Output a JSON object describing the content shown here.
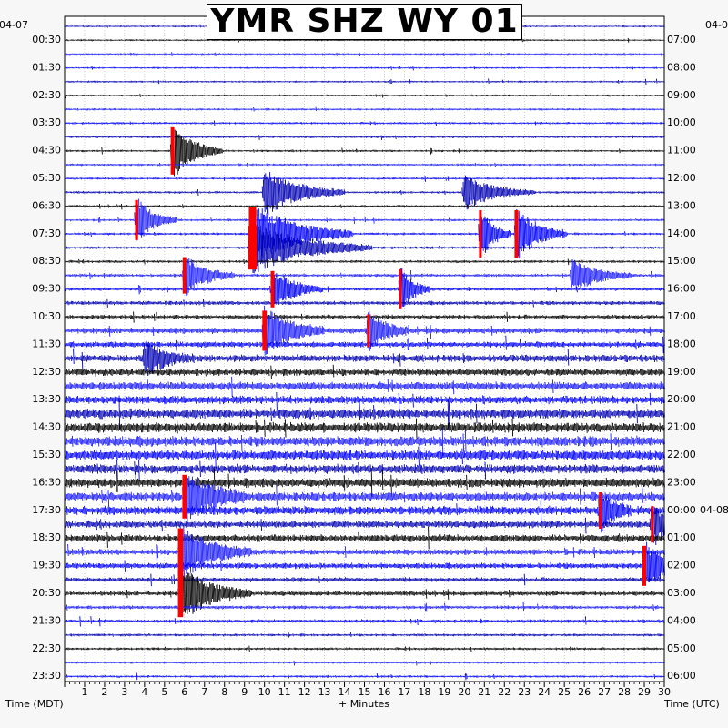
{
  "chart_data": {
    "type": "line",
    "title": "YMR SHZ WY 01",
    "xlabel": "+ Minutes",
    "left_axis_title": "Time (MDT)",
    "right_axis_title": "Time (UTC)",
    "left_date": "04-07",
    "right_date_top": "04-0",
    "right_date_change": "04-08",
    "x_range": [
      0,
      30
    ],
    "x_ticks": [
      "1",
      "2",
      "3",
      "4",
      "5",
      "6",
      "7",
      "8",
      "9",
      "10",
      "11",
      "12",
      "13",
      "14",
      "15",
      "16",
      "17",
      "18",
      "19",
      "20",
      "21",
      "22",
      "23",
      "24",
      "25",
      "26",
      "27",
      "28",
      "29",
      "30"
    ],
    "left_hour_labels": [
      "00:30",
      "01:30",
      "02:30",
      "03:30",
      "04:30",
      "05:30",
      "06:30",
      "07:30",
      "08:30",
      "09:30",
      "10:30",
      "11:30",
      "12:30",
      "13:30",
      "14:30",
      "15:30",
      "16:30",
      "17:30",
      "18:30",
      "19:30",
      "20:30",
      "21:30",
      "22:30",
      "23:30"
    ],
    "right_hour_labels": [
      "07:00",
      "08:00",
      "09:00",
      "10:00",
      "11:00",
      "12:00",
      "13:00",
      "14:00",
      "15:00",
      "16:00",
      "17:00",
      "18:00",
      "19:00",
      "20:00",
      "21:00",
      "22:00",
      "23:00",
      "00:00",
      "01:00",
      "02:00",
      "03:00",
      "04:00",
      "05:00",
      "06:00"
    ],
    "trace_colors": [
      "#0000b4",
      "#000000",
      "#1e1eff",
      "#0000ff"
    ],
    "clip_color": "#ff0000",
    "trace_rows": 48,
    "minutes_per_row": 30,
    "background_noise_by_hour": [
      0.8,
      0.8,
      0.9,
      1,
      1,
      1,
      1.1,
      1.1,
      1.2,
      1.4,
      1.8,
      2.6,
      3.2,
      3.6,
      4.4,
      4.6,
      4.2,
      4.0,
      3.2,
      2.6,
      2.0,
      1.6,
      1.2,
      1.0
    ],
    "events": [
      {
        "row": 9,
        "minute": 5.4,
        "amplitude": 2.6,
        "duration_min": 1.0,
        "clipped": true
      },
      {
        "row": 12,
        "minute": 10.0,
        "amplitude": 2.2,
        "duration_min": 1.6,
        "clipped": false
      },
      {
        "row": 12,
        "minute": 20.0,
        "amplitude": 1.6,
        "duration_min": 1.4,
        "clipped": false
      },
      {
        "row": 14,
        "minute": 3.6,
        "amplitude": 2.2,
        "duration_min": 0.8,
        "clipped": true
      },
      {
        "row": 15,
        "minute": 9.4,
        "amplitude": 3.0,
        "duration_min": 2.0,
        "clipped": true
      },
      {
        "row": 15,
        "minute": 20.8,
        "amplitude": 2.6,
        "duration_min": 0.6,
        "clipped": true
      },
      {
        "row": 15,
        "minute": 22.6,
        "amplitude": 2.6,
        "duration_min": 1.0,
        "clipped": true
      },
      {
        "row": 16,
        "minute": 9.4,
        "amplitude": 2.4,
        "duration_min": 2.4,
        "clipped": true
      },
      {
        "row": 18,
        "minute": 6.0,
        "amplitude": 2.0,
        "duration_min": 1.0,
        "clipped": true
      },
      {
        "row": 18,
        "minute": 25.4,
        "amplitude": 1.6,
        "duration_min": 1.2,
        "clipped": false
      },
      {
        "row": 19,
        "minute": 16.8,
        "amplitude": 2.2,
        "duration_min": 0.6,
        "clipped": true
      },
      {
        "row": 19,
        "minute": 10.4,
        "amplitude": 2.0,
        "duration_min": 1.0,
        "clipped": true
      },
      {
        "row": 22,
        "minute": 10.0,
        "amplitude": 2.2,
        "duration_min": 1.2,
        "clipped": true
      },
      {
        "row": 22,
        "minute": 15.2,
        "amplitude": 1.8,
        "duration_min": 0.8,
        "clipped": true
      },
      {
        "row": 24,
        "minute": 4.0,
        "amplitude": 1.6,
        "duration_min": 1.0,
        "clipped": false
      },
      {
        "row": 34,
        "minute": 6.0,
        "amplitude": 2.4,
        "duration_min": 1.2,
        "clipped": true
      },
      {
        "row": 35,
        "minute": 26.8,
        "amplitude": 2.0,
        "duration_min": 0.6,
        "clipped": true
      },
      {
        "row": 36,
        "minute": 29.4,
        "amplitude": 2.0,
        "duration_min": 0.6,
        "clipped": true
      },
      {
        "row": 38,
        "minute": 5.8,
        "amplitude": 2.6,
        "duration_min": 1.4,
        "clipped": true
      },
      {
        "row": 41,
        "minute": 5.8,
        "amplitude": 2.6,
        "duration_min": 1.4,
        "clipped": true
      },
      {
        "row": 39,
        "minute": 29.0,
        "amplitude": 2.2,
        "duration_min": 1.0,
        "clipped": true
      }
    ]
  }
}
